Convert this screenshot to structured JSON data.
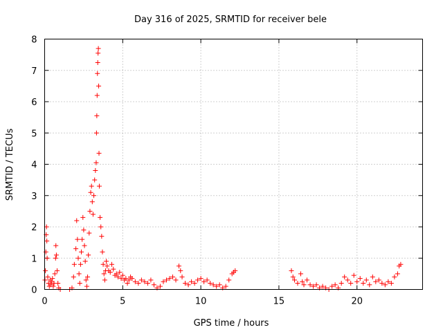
{
  "chart_data": {
    "type": "scatter",
    "title": "Day 316 of 2025, SRMTID for receiver bele",
    "xlabel": "GPS time / hours",
    "ylabel": "SRMTID / TECUs",
    "xlim": [
      0,
      24.2
    ],
    "ylim": [
      0,
      8
    ],
    "x_ticks": [
      0,
      5,
      10,
      15,
      20
    ],
    "y_ticks": [
      0,
      1,
      2,
      3,
      4,
      5,
      6,
      7,
      8
    ],
    "grid": true,
    "marker": "+",
    "color": "#ff0000",
    "series": [
      {
        "name": "SRMTID",
        "points": [
          [
            0.02,
            0.3
          ],
          [
            0.05,
            0.6
          ],
          [
            0.08,
            1.2
          ],
          [
            0.1,
            1.75
          ],
          [
            0.12,
            2.0
          ],
          [
            0.14,
            1.55
          ],
          [
            0.16,
            1.0
          ],
          [
            0.2,
            0.4
          ],
          [
            0.25,
            0.2
          ],
          [
            0.3,
            0.1
          ],
          [
            0.35,
            0.3
          ],
          [
            0.4,
            0.15
          ],
          [
            0.45,
            0.25
          ],
          [
            0.5,
            0.35
          ],
          [
            0.55,
            0.1
          ],
          [
            0.6,
            0.2
          ],
          [
            0.65,
            0.5
          ],
          [
            0.7,
            1.0
          ],
          [
            0.72,
            1.4
          ],
          [
            0.75,
            1.1
          ],
          [
            0.8,
            0.6
          ],
          [
            0.85,
            0.2
          ],
          [
            0.9,
            0.05
          ],
          [
            1.0,
            0.0
          ],
          [
            1.6,
            0.0
          ],
          [
            1.75,
            0.05
          ],
          [
            1.85,
            0.4
          ],
          [
            1.9,
            0.8
          ],
          [
            2.0,
            1.3
          ],
          [
            2.05,
            2.2
          ],
          [
            2.1,
            1.6
          ],
          [
            2.15,
            1.0
          ],
          [
            2.2,
            0.5
          ],
          [
            2.25,
            0.2
          ],
          [
            2.3,
            0.8
          ],
          [
            2.35,
            1.2
          ],
          [
            2.4,
            1.6
          ],
          [
            2.45,
            2.3
          ],
          [
            2.5,
            1.9
          ],
          [
            2.55,
            1.4
          ],
          [
            2.6,
            0.9
          ],
          [
            2.65,
            0.3
          ],
          [
            2.7,
            0.1
          ],
          [
            2.75,
            0.4
          ],
          [
            2.8,
            1.1
          ],
          [
            2.85,
            1.8
          ],
          [
            2.9,
            2.5
          ],
          [
            2.95,
            3.1
          ],
          [
            3.0,
            3.3
          ],
          [
            3.05,
            2.8
          ],
          [
            3.1,
            2.4
          ],
          [
            3.15,
            3.0
          ],
          [
            3.2,
            3.5
          ],
          [
            3.25,
            3.8
          ],
          [
            3.3,
            4.05
          ],
          [
            3.32,
            5.0
          ],
          [
            3.34,
            5.55
          ],
          [
            3.36,
            6.2
          ],
          [
            3.38,
            6.9
          ],
          [
            3.4,
            7.25
          ],
          [
            3.42,
            7.55
          ],
          [
            3.44,
            7.7
          ],
          [
            3.46,
            6.5
          ],
          [
            3.48,
            4.35
          ],
          [
            3.5,
            3.3
          ],
          [
            3.55,
            2.3
          ],
          [
            3.6,
            2.0
          ],
          [
            3.65,
            1.7
          ],
          [
            3.7,
            1.2
          ],
          [
            3.75,
            0.8
          ],
          [
            3.8,
            0.5
          ],
          [
            3.85,
            0.3
          ],
          [
            3.9,
            0.6
          ],
          [
            3.95,
            0.9
          ],
          [
            4.0,
            0.75
          ],
          [
            4.1,
            0.6
          ],
          [
            4.2,
            0.55
          ],
          [
            4.3,
            0.8
          ],
          [
            4.4,
            0.65
          ],
          [
            4.5,
            0.45
          ],
          [
            4.6,
            0.5
          ],
          [
            4.7,
            0.4
          ],
          [
            4.8,
            0.55
          ],
          [
            4.9,
            0.35
          ],
          [
            5.0,
            0.45
          ],
          [
            5.1,
            0.3
          ],
          [
            5.2,
            0.35
          ],
          [
            5.3,
            0.2
          ],
          [
            5.4,
            0.3
          ],
          [
            5.5,
            0.4
          ],
          [
            5.6,
            0.35
          ],
          [
            5.8,
            0.25
          ],
          [
            6.0,
            0.2
          ],
          [
            6.2,
            0.3
          ],
          [
            6.4,
            0.25
          ],
          [
            6.6,
            0.2
          ],
          [
            6.8,
            0.3
          ],
          [
            7.0,
            0.15
          ],
          [
            7.2,
            0.05
          ],
          [
            7.4,
            0.1
          ],
          [
            7.6,
            0.25
          ],
          [
            7.8,
            0.3
          ],
          [
            8.0,
            0.35
          ],
          [
            8.2,
            0.4
          ],
          [
            8.4,
            0.3
          ],
          [
            8.6,
            0.75
          ],
          [
            8.7,
            0.6
          ],
          [
            8.8,
            0.4
          ],
          [
            9.0,
            0.2
          ],
          [
            9.2,
            0.15
          ],
          [
            9.4,
            0.25
          ],
          [
            9.6,
            0.2
          ],
          [
            9.8,
            0.3
          ],
          [
            10.0,
            0.35
          ],
          [
            10.2,
            0.25
          ],
          [
            10.4,
            0.3
          ],
          [
            10.6,
            0.2
          ],
          [
            10.8,
            0.15
          ],
          [
            11.0,
            0.1
          ],
          [
            11.2,
            0.15
          ],
          [
            11.4,
            0.05
          ],
          [
            11.6,
            0.1
          ],
          [
            11.8,
            0.3
          ],
          [
            12.0,
            0.5
          ],
          [
            12.1,
            0.55
          ],
          [
            12.2,
            0.6
          ],
          [
            15.8,
            0.6
          ],
          [
            15.9,
            0.4
          ],
          [
            16.0,
            0.3
          ],
          [
            16.2,
            0.2
          ],
          [
            16.4,
            0.5
          ],
          [
            16.5,
            0.25
          ],
          [
            16.6,
            0.15
          ],
          [
            16.8,
            0.3
          ],
          [
            17.0,
            0.15
          ],
          [
            17.2,
            0.1
          ],
          [
            17.4,
            0.15
          ],
          [
            17.6,
            0.05
          ],
          [
            17.8,
            0.1
          ],
          [
            18.0,
            0.05
          ],
          [
            18.2,
            0.0
          ],
          [
            18.4,
            0.1
          ],
          [
            18.6,
            0.15
          ],
          [
            18.8,
            0.05
          ],
          [
            19.0,
            0.2
          ],
          [
            19.2,
            0.4
          ],
          [
            19.4,
            0.3
          ],
          [
            19.6,
            0.2
          ],
          [
            19.8,
            0.45
          ],
          [
            20.0,
            0.25
          ],
          [
            20.2,
            0.35
          ],
          [
            20.4,
            0.2
          ],
          [
            20.6,
            0.3
          ],
          [
            20.8,
            0.15
          ],
          [
            21.0,
            0.4
          ],
          [
            21.2,
            0.25
          ],
          [
            21.4,
            0.3
          ],
          [
            21.6,
            0.2
          ],
          [
            21.8,
            0.15
          ],
          [
            22.0,
            0.25
          ],
          [
            22.2,
            0.2
          ],
          [
            22.4,
            0.4
          ],
          [
            22.6,
            0.5
          ],
          [
            22.7,
            0.75
          ],
          [
            22.8,
            0.8
          ]
        ]
      }
    ]
  }
}
